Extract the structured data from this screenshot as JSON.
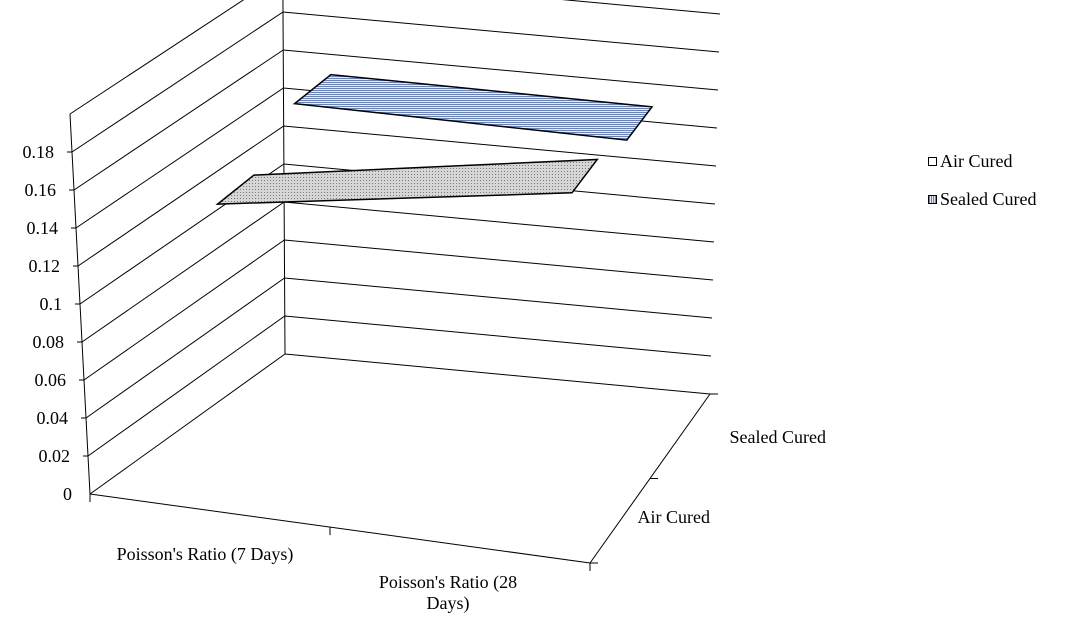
{
  "chart_data": {
    "type": "area",
    "three_d": true,
    "categories": [
      "Poisson's Ratio (7 Days)",
      "Poisson's Ratio (28 Days)"
    ],
    "series": [
      {
        "name": "Air Cured",
        "values": [
          0.14,
          0.17
        ]
      },
      {
        "name": "Sealed Cured",
        "values": [
          0.16,
          0.16
        ]
      }
    ],
    "y_ticks": [
      "0",
      "0.02",
      "0.04",
      "0.06",
      "0.08",
      "0.1",
      "0.12",
      "0.14",
      "0.16",
      "0.18"
    ],
    "ylim": [
      0,
      0.18
    ],
    "grid": true,
    "legend_position": "right",
    "colors": {
      "air": "#b8b8b8",
      "sealed": "#8aa0c8",
      "edge": "#000000"
    }
  }
}
